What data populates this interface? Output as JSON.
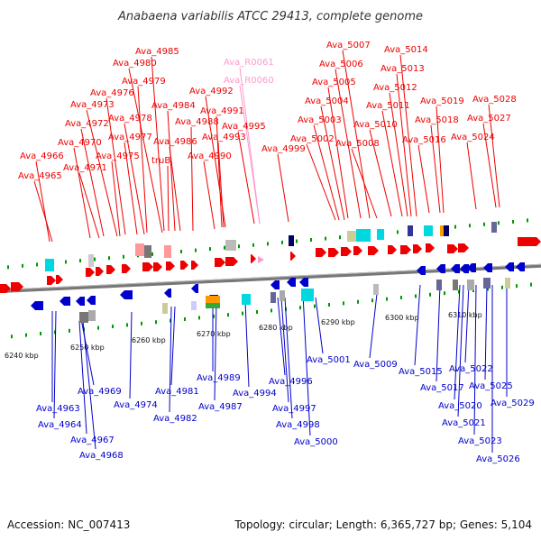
{
  "title": "Anabaena variabilis ATCC 29413, complete genome",
  "footer": {
    "accession": "Accession: NC_007413",
    "summary": "Topology: circular; Length: 6,365,727 bp; Genes: 5,104"
  },
  "colors": {
    "forward": "#ee0000",
    "reverse": "#0000cc",
    "rna": "#ff99cc",
    "backbone": "#777777",
    "tick_green": "#009900"
  },
  "scale_labels": [
    "6240 kbp",
    "6250 kbp",
    "6260 kbp",
    "6270 kbp",
    "6280 kbp",
    "6290 kbp",
    "6300 kbp",
    "6310 kbp"
  ],
  "top_labels": [
    "Ava_4965",
    "Ava_4966",
    "Ava_4970",
    "Ava_4971",
    "Ava_4972",
    "Ava_4973",
    "Ava_4975",
    "Ava_4976",
    "Ava_4977",
    "Ava_4978",
    "Ava_4979",
    "Ava_4980",
    "Ava_4985",
    "truB",
    "Ava_4984",
    "Ava_4986",
    "Ava_4988",
    "Ava_4990",
    "Ava_4991",
    "Ava_4992",
    "Ava_4993",
    "Ava_R0061",
    "Ava_R0060",
    "Ava_4995",
    "Ava_4999",
    "Ava_5002",
    "Ava_5003",
    "Ava_5004",
    "Ava_5005",
    "Ava_5006",
    "Ava_5007",
    "Ava_5008",
    "Ava_5010",
    "Ava_5011",
    "Ava_5012",
    "Ava_5013",
    "Ava_5014",
    "Ava_5016",
    "Ava_5018",
    "Ava_5019",
    "Ava_5024",
    "Ava_5027",
    "Ava_5028"
  ],
  "bottom_labels": [
    "Ava_4963",
    "Ava_4964",
    "Ava_4967",
    "Ava_4968",
    "Ava_4969",
    "Ava_4974",
    "Ava_4981",
    "Ava_4982",
    "Ava_4987",
    "Ava_4989",
    "Ava_4994",
    "Ava_4996",
    "Ava_4997",
    "Ava_4998",
    "Ava_5000",
    "Ava_5001",
    "Ava_5009",
    "Ava_5015",
    "Ava_5017",
    "Ava_5020",
    "Ava_5021",
    "Ava_5022",
    "Ava_5023",
    "Ava_5025",
    "Ava_5026",
    "Ava_5029"
  ]
}
